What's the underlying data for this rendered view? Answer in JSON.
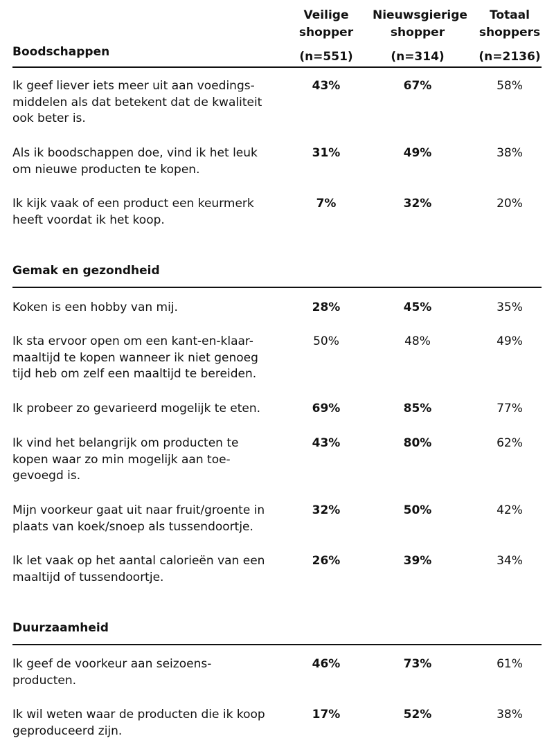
{
  "columns": [
    {
      "line1": "Veilige",
      "line2": "shopper",
      "n": "(n=551)"
    },
    {
      "line1": "Nieuwsgierige",
      "line2": "shopper",
      "n": "(n=314)"
    },
    {
      "line1": "Totaal",
      "line2": "shoppers",
      "n": "(n=2136)"
    }
  ],
  "sections": [
    {
      "title": "Boodschappen",
      "rows": [
        {
          "lines": [
            "Ik geef liever iets meer uit aan voedings-",
            "middelen als dat betekent dat de kwaliteit",
            "ook beter is."
          ],
          "values": [
            "43%",
            "67%",
            "58%"
          ],
          "bold": [
            true,
            true,
            false
          ]
        },
        {
          "lines": [
            "Als ik boodschappen doe, vind ik het leuk",
            "om nieuwe producten te kopen."
          ],
          "values": [
            "31%",
            "49%",
            "38%"
          ],
          "bold": [
            true,
            true,
            false
          ]
        },
        {
          "lines": [
            "Ik kijk vaak of een product een keurmerk",
            "heeft voordat ik het koop."
          ],
          "values": [
            "7%",
            "32%",
            "20%"
          ],
          "bold": [
            true,
            true,
            false
          ]
        }
      ]
    },
    {
      "title": "Gemak en gezondheid",
      "rows": [
        {
          "lines": [
            "Koken is een hobby van mij."
          ],
          "values": [
            "28%",
            "45%",
            "35%"
          ],
          "bold": [
            true,
            true,
            false
          ]
        },
        {
          "lines": [
            "Ik sta ervoor open om een kant-en-klaar-",
            "maaltijd te kopen wanneer ik niet genoeg",
            "tijd heb om zelf een maaltijd te bereiden."
          ],
          "values": [
            "50%",
            "48%",
            "49%"
          ],
          "bold": [
            false,
            false,
            false
          ]
        },
        {
          "lines": [
            "Ik probeer zo gevarieerd mogelijk te eten."
          ],
          "values": [
            "69%",
            "85%",
            "77%"
          ],
          "bold": [
            true,
            true,
            false
          ]
        },
        {
          "lines": [
            "Ik vind het belangrijk om producten te",
            "kopen waar zo min mogelijk aan toe-",
            "gevoegd is."
          ],
          "values": [
            "43%",
            "80%",
            "62%"
          ],
          "bold": [
            true,
            true,
            false
          ]
        },
        {
          "lines": [
            "Mijn voorkeur gaat uit naar fruit/groente in",
            "plaats van koek/snoep als tussendoortje."
          ],
          "values": [
            "32%",
            "50%",
            "42%"
          ],
          "bold": [
            true,
            true,
            false
          ]
        },
        {
          "lines": [
            "Ik let vaak op het aantal calorieën van een",
            "maaltijd of tussendoortje."
          ],
          "values": [
            "26%",
            "39%",
            "34%"
          ],
          "bold": [
            true,
            true,
            false
          ]
        }
      ]
    },
    {
      "title": "Duurzaamheid",
      "rows": [
        {
          "lines": [
            "Ik geef de voorkeur aan seizoens-",
            "producten."
          ],
          "values": [
            "46%",
            "73%",
            "61%"
          ],
          "bold": [
            true,
            true,
            false
          ]
        },
        {
          "lines": [
            "Ik wil weten waar de producten die ik koop",
            "geproduceerd zijn."
          ],
          "values": [
            "17%",
            "52%",
            "38%"
          ],
          "bold": [
            true,
            true,
            false
          ]
        }
      ]
    }
  ]
}
